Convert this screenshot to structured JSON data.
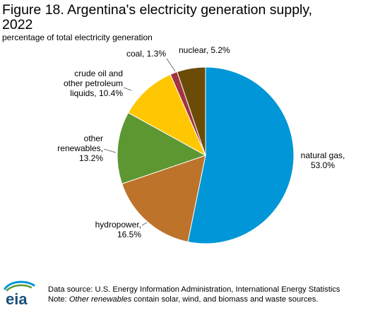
{
  "chart_data": {
    "type": "pie",
    "title": "Figure 18. Argentina's electricity generation supply,\n2022",
    "subtitle": "percentage of total electricity generation",
    "slices": [
      {
        "label_lines": [
          "natural gas,",
          "53.0%"
        ],
        "value": 53.0,
        "color": "#0096d7"
      },
      {
        "label_lines": [
          "hydropower,",
          "16.5%"
        ],
        "value": 16.5,
        "color": "#bd732a"
      },
      {
        "label_lines": [
          "other",
          "renewables,",
          "13.2%"
        ],
        "value": 13.2,
        "color": "#5d9732"
      },
      {
        "label_lines": [
          "crude oil and",
          "other petroleum",
          "liquids, 10.4%"
        ],
        "value": 10.4,
        "color": "#ffc702"
      },
      {
        "label_lines": [
          "coal, 1.3%"
        ],
        "value": 1.3,
        "color": "#a33340"
      },
      {
        "label_lines": [
          "nuclear, 5.2%"
        ],
        "value": 5.2,
        "color": "#6a4c07"
      }
    ]
  },
  "footer": {
    "source": "Data source: U.S. Energy Information Administration, International Energy Statistics",
    "note_prefix": "Note: ",
    "note_italic": "Other renewables",
    "note_suffix": " contain solar, wind, and biomass and waste sources."
  },
  "logo": {
    "text": "eia"
  }
}
